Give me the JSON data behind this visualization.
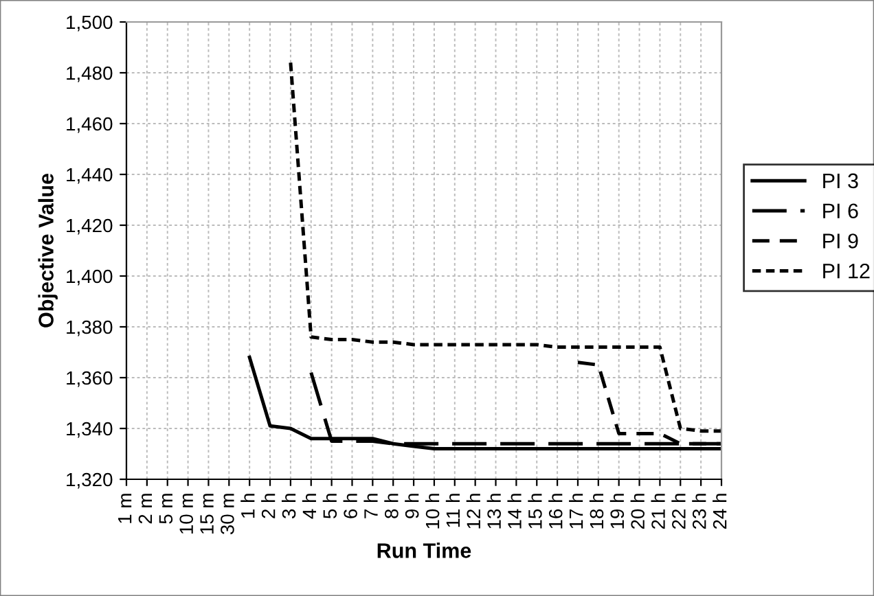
{
  "chart_data": {
    "type": "line",
    "xlabel": "Run Time",
    "ylabel": "Objective Value",
    "categories": [
      "1 m",
      "2 m",
      "5 m",
      "10 m",
      "15 m",
      "30 m",
      "1 h",
      "2 h",
      "3 h",
      "4 h",
      "5 h",
      "6 h",
      "7 h",
      "8 h",
      "9 h",
      "10 h",
      "11 h",
      "12 h",
      "13 h",
      "14 h",
      "15 h",
      "16 h",
      "17 h",
      "18 h",
      "19 h",
      "20 h",
      "21 h",
      "22 h",
      "23 h",
      "24 h"
    ],
    "ylim": [
      1320,
      1500
    ],
    "yticks": [
      {
        "value": 1320,
        "label": "1,320"
      },
      {
        "value": 1340,
        "label": "1,340"
      },
      {
        "value": 1360,
        "label": "1,360"
      },
      {
        "value": 1380,
        "label": "1,380"
      },
      {
        "value": 1400,
        "label": "1,400"
      },
      {
        "value": 1420,
        "label": "1,420"
      },
      {
        "value": 1440,
        "label": "1,440"
      },
      {
        "value": 1460,
        "label": "1,460"
      },
      {
        "value": 1480,
        "label": "1,480"
      },
      {
        "value": 1500,
        "label": "1,500"
      }
    ],
    "grid": true,
    "legend": "right",
    "marker": "none",
    "series": [
      {
        "name": "PI 3",
        "color": "#000000",
        "line_style": "solid",
        "values": [
          null,
          null,
          null,
          null,
          null,
          null,
          1368,
          1341,
          1340,
          1336,
          1336,
          1336,
          1336,
          1334,
          1333,
          1332,
          1332,
          1332,
          1332,
          1332,
          1332,
          1332,
          1332,
          1332,
          1332,
          1332,
          1332,
          1332,
          1332,
          1332
        ]
      },
      {
        "name": "PI 6",
        "color": "#000000",
        "line_style": "dashdot",
        "values": [
          null,
          null,
          null,
          null,
          null,
          null,
          null,
          null,
          null,
          1362,
          1335,
          1335,
          1335,
          1334,
          1334,
          1334,
          1334,
          1334,
          1334,
          1334,
          1334,
          1334,
          1334,
          1334,
          1334,
          1334,
          1334,
          1334,
          1334,
          1334
        ]
      },
      {
        "name": "PI 9",
        "color": "#000000",
        "line_style": "dashed",
        "values": [
          null,
          null,
          null,
          null,
          null,
          null,
          null,
          null,
          null,
          null,
          null,
          null,
          null,
          null,
          null,
          null,
          null,
          null,
          null,
          null,
          null,
          null,
          1366,
          1365,
          1338,
          1338,
          1338,
          1334,
          1334,
          1334
        ]
      },
      {
        "name": "PI 12",
        "color": "#000000",
        "line_style": "dotted",
        "values": [
          null,
          null,
          null,
          null,
          null,
          null,
          null,
          null,
          1484,
          1376,
          1375,
          1375,
          1374,
          1374,
          1373,
          1373,
          1373,
          1373,
          1373,
          1373,
          1373,
          1372,
          1372,
          1372,
          1372,
          1372,
          1372,
          1340,
          1339,
          1339
        ]
      }
    ]
  }
}
